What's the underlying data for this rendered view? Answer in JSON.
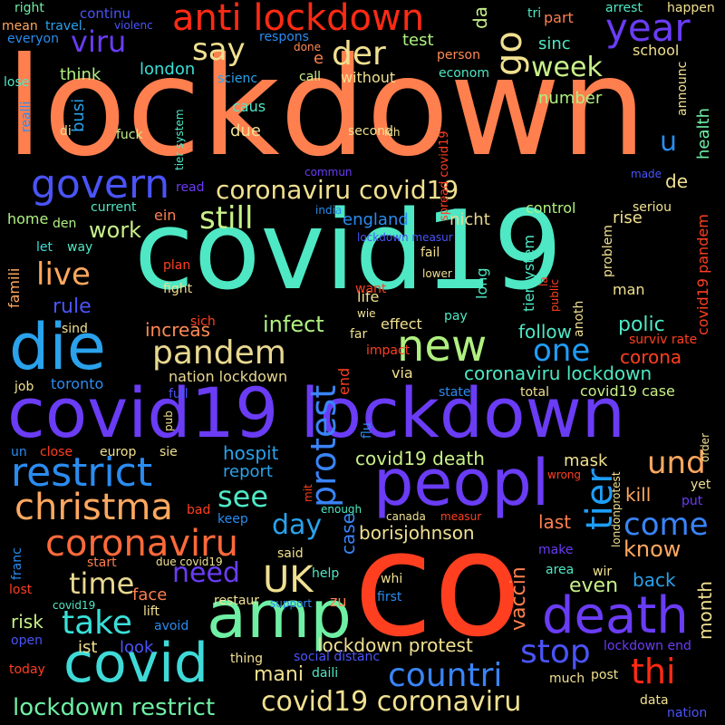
{
  "words": [
    {
      "text": "lockdown",
      "color": "#ff7f4f"
    },
    {
      "text": "covid19",
      "color": "#4ee8c4"
    },
    {
      "text": "co",
      "color": "#ff3f20"
    },
    {
      "text": "covid19 lockdown",
      "color": "#6a3cf5"
    },
    {
      "text": "amp",
      "color": "#6fefa4"
    },
    {
      "text": "die",
      "color": "#2aa2ec"
    },
    {
      "text": "peopl",
      "color": "#6a3cf5"
    },
    {
      "text": "covid",
      "color": "#3fdad8"
    },
    {
      "text": "death",
      "color": "#6a3cf5"
    },
    {
      "text": "restrict",
      "color": "#2a8cf0"
    },
    {
      "text": "anti lockdown",
      "color": "#ff2a14"
    },
    {
      "text": "new",
      "color": "#b0f080"
    },
    {
      "text": "christma",
      "color": "#ffa85f"
    },
    {
      "text": "coronaviru",
      "color": "#ff6a3a"
    },
    {
      "text": "pandem",
      "color": "#e8d890"
    },
    {
      "text": "govern",
      "color": "#4a54f8"
    },
    {
      "text": "protest",
      "color": "#3a84f8"
    },
    {
      "text": "tier",
      "color": "#1e9ef8"
    },
    {
      "text": "UK",
      "color": "#f0e090"
    },
    {
      "text": "year",
      "color": "#6a3cf5"
    },
    {
      "text": "take",
      "color": "#3ae0d8"
    },
    {
      "text": "thi",
      "color": "#ff2a14"
    },
    {
      "text": "stop",
      "color": "#4a54f8"
    },
    {
      "text": "countri",
      "color": "#3a84f8"
    },
    {
      "text": "covid19 coronaviru",
      "color": "#f0e090"
    },
    {
      "text": "lockdown restrict",
      "color": "#6fefa4"
    },
    {
      "text": "coronaviru covid19",
      "color": "#f0e090"
    },
    {
      "text": "und",
      "color": "#ffa85f"
    },
    {
      "text": "come",
      "color": "#3a84f8"
    },
    {
      "text": "one",
      "color": "#1e9ef8"
    },
    {
      "text": "day",
      "color": "#2aa2ec"
    },
    {
      "text": "time",
      "color": "#e8d890"
    },
    {
      "text": "need",
      "color": "#6a3cf5"
    },
    {
      "text": "viru",
      "color": "#6a3cf5"
    },
    {
      "text": "say",
      "color": "#f0e090"
    },
    {
      "text": "der",
      "color": "#f0e090"
    },
    {
      "text": "go",
      "color": "#f0e090"
    },
    {
      "text": "still",
      "color": "#c8f088"
    },
    {
      "text": "live",
      "color": "#ffa85f"
    },
    {
      "text": "see",
      "color": "#4ee8c4"
    },
    {
      "text": "week",
      "color": "#c8f088"
    },
    {
      "text": "u",
      "color": "#2a8cf0"
    },
    {
      "text": "mani",
      "color": "#f0e090"
    },
    {
      "text": "vaccin",
      "color": "#ff7f4f"
    },
    {
      "text": "month",
      "color": "#f0e090"
    },
    {
      "text": "work",
      "color": "#c8f088"
    },
    {
      "text": "infect",
      "color": "#b0f080"
    },
    {
      "text": "increas",
      "color": "#ff8a54"
    },
    {
      "text": "corona",
      "color": "#ff3f20"
    },
    {
      "text": "polic",
      "color": "#4ee8c4"
    },
    {
      "text": "know",
      "color": "#ffa85f"
    },
    {
      "text": "case",
      "color": "#3a84f8"
    },
    {
      "text": "borisjohnson",
      "color": "#f0e090"
    },
    {
      "text": "covid19 death",
      "color": "#c8f088"
    },
    {
      "text": "coronaviru lockdown",
      "color": "#4ee8c4"
    },
    {
      "text": "lockdown protest",
      "color": "#f0e090"
    },
    {
      "text": "hospit",
      "color": "#2aa2ec"
    },
    {
      "text": "report",
      "color": "#2aa2ec"
    },
    {
      "text": "rule",
      "color": "#4a54f8"
    },
    {
      "text": "even",
      "color": "#c8f088"
    },
    {
      "text": "kill",
      "color": "#ffa85f"
    },
    {
      "text": "mask",
      "color": "#f0e090"
    },
    {
      "text": "follow",
      "color": "#4ee8c4"
    },
    {
      "text": "last",
      "color": "#ff7f4f"
    },
    {
      "text": "back",
      "color": "#2aa2ec"
    },
    {
      "text": "face",
      "color": "#ff7f4f"
    },
    {
      "text": "risk",
      "color": "#c8f088"
    },
    {
      "text": "look",
      "color": "#4a54f8"
    },
    {
      "text": "ist",
      "color": "#f0e090"
    },
    {
      "text": "de",
      "color": "#f0e090"
    },
    {
      "text": "rise",
      "color": "#f0e090"
    },
    {
      "text": "england",
      "color": "#2a8cf0"
    },
    {
      "text": "nicht",
      "color": "#e8d890"
    },
    {
      "text": "test",
      "color": "#b0f080"
    },
    {
      "text": "da",
      "color": "#c8f088"
    },
    {
      "text": "sinc",
      "color": "#4ee8c4"
    },
    {
      "text": "number",
      "color": "#b0f080"
    },
    {
      "text": "school",
      "color": "#f0e090"
    },
    {
      "text": "health",
      "color": "#6fefa4"
    },
    {
      "text": "think",
      "color": "#b0f080"
    },
    {
      "text": "london",
      "color": "#3ae0d8"
    },
    {
      "text": "busi",
      "color": "#2aa2ec"
    },
    {
      "text": "due",
      "color": "#f0e090"
    },
    {
      "text": "caus",
      "color": "#4ee8c4"
    },
    {
      "text": "home",
      "color": "#b0f080"
    },
    {
      "text": "ein",
      "color": "#ff7f4f"
    },
    {
      "text": "tiersystem",
      "color": "#4ee8c4"
    },
    {
      "text": "control",
      "color": "#b0f080"
    },
    {
      "text": "life",
      "color": "#f0e090"
    },
    {
      "text": "long",
      "color": "#4ee8c4"
    },
    {
      "text": "effect",
      "color": "#f0e090"
    },
    {
      "text": "via",
      "color": "#f0e090"
    },
    {
      "text": "end",
      "color": "#ff3f20"
    },
    {
      "text": "covid19 case",
      "color": "#c8f088"
    },
    {
      "text": "toronto",
      "color": "#2a8cf0"
    },
    {
      "text": "nation lockdown",
      "color": "#e8d890"
    },
    {
      "text": "famili",
      "color": "#ffa85f"
    },
    {
      "text": "right",
      "color": "#6fefa4"
    },
    {
      "text": "continu",
      "color": "#4a54f8"
    },
    {
      "text": "tri",
      "color": "#4ee8c4"
    },
    {
      "text": "part",
      "color": "#ff7f4f"
    },
    {
      "text": "arrest",
      "color": "#4ee8c4"
    },
    {
      "text": "happen",
      "color": "#f0e090"
    },
    {
      "text": "mean",
      "color": "#ffa85f"
    },
    {
      "text": "travel.",
      "color": "#2aa2ec"
    },
    {
      "text": "violenc",
      "color": "#4a54f8"
    },
    {
      "text": "respons",
      "color": "#2a8cf0"
    },
    {
      "text": "everyon",
      "color": "#2a8cf0"
    },
    {
      "text": "done",
      "color": "#ff8a54"
    },
    {
      "text": "person",
      "color": "#ff8a54"
    },
    {
      "text": "econom",
      "color": "#4ee8c4"
    },
    {
      "text": "announc",
      "color": "#f0e090"
    },
    {
      "text": "lose",
      "color": "#4ee8c4"
    },
    {
      "text": "scienc",
      "color": "#2aa2ec"
    },
    {
      "text": "call",
      "color": "#c8f088"
    },
    {
      "text": "without",
      "color": "#f0e090"
    },
    {
      "text": "e",
      "color": "#ff7f4f"
    },
    {
      "text": "realli",
      "color": "#2a8cf0"
    },
    {
      "text": "tier system",
      "color": "#4ee8c4"
    },
    {
      "text": "di",
      "color": "#f0e090"
    },
    {
      "text": "fuck",
      "color": "#c8f088"
    },
    {
      "text": "second",
      "color": "#f0e090"
    },
    {
      "text": "ich",
      "color": "#f0e090"
    },
    {
      "text": "spread covid19",
      "color": "#ff3f20"
    },
    {
      "text": "commun",
      "color": "#6a3cf5"
    },
    {
      "text": "made",
      "color": "#4a54f8"
    },
    {
      "text": "read",
      "color": "#6a3cf5"
    },
    {
      "text": "current",
      "color": "#4ee8c4"
    },
    {
      "text": "india",
      "color": "#2a8cf0"
    },
    {
      "text": "seriou",
      "color": "#f0e090"
    },
    {
      "text": "den",
      "color": "#b0f080"
    },
    {
      "text": "lockdown measur",
      "color": "#4a54f8"
    },
    {
      "text": "let",
      "color": "#3ae0d8"
    },
    {
      "text": "way",
      "color": "#4ee8c4"
    },
    {
      "text": "fail",
      "color": "#f0e090"
    },
    {
      "text": "lower",
      "color": "#f0e090"
    },
    {
      "text": "plan",
      "color": "#ff3f20"
    },
    {
      "text": "fight",
      "color": "#f0e090"
    },
    {
      "text": "want",
      "color": "#ff3f20"
    },
    {
      "text": "la",
      "color": "#ff3f20"
    },
    {
      "text": "public",
      "color": "#ff3f20"
    },
    {
      "text": "problem",
      "color": "#f0e090"
    },
    {
      "text": "man",
      "color": "#f0e090"
    },
    {
      "text": "covid19 pandem",
      "color": "#ff3f20"
    },
    {
      "text": "wie",
      "color": "#f0e090"
    },
    {
      "text": "pay",
      "color": "#4ee8c4"
    },
    {
      "text": "sind",
      "color": "#f0e090"
    },
    {
      "text": "sich",
      "color": "#ff3f20"
    },
    {
      "text": "far",
      "color": "#f0e090"
    },
    {
      "text": "impact",
      "color": "#ff3f20"
    },
    {
      "text": "anoth",
      "color": "#f0e090"
    },
    {
      "text": "surviv rate",
      "color": "#ff3f20"
    },
    {
      "text": "job",
      "color": "#f0e090"
    },
    {
      "text": "full",
      "color": "#4a54f8"
    },
    {
      "text": "state",
      "color": "#2a8cf0"
    },
    {
      "text": "total",
      "color": "#f0e090"
    },
    {
      "text": "flu",
      "color": "#2a8cf0"
    },
    {
      "text": "pub",
      "color": "#f0e090"
    },
    {
      "text": "order",
      "color": "#f0e090"
    },
    {
      "text": "un",
      "color": "#2a8cf0"
    },
    {
      "text": "close",
      "color": "#ff3f20"
    },
    {
      "text": "europ",
      "color": "#f0e090"
    },
    {
      "text": "sie",
      "color": "#f0e090"
    },
    {
      "text": "wrong",
      "color": "#ff3f20"
    },
    {
      "text": "mit",
      "color": "#ff3f20"
    },
    {
      "text": "enough",
      "color": "#4ee8c4"
    },
    {
      "text": "yet",
      "color": "#f0e090"
    },
    {
      "text": "bad",
      "color": "#ff3f20"
    },
    {
      "text": "keep",
      "color": "#2a8cf0"
    },
    {
      "text": "put",
      "color": "#6a3cf5"
    },
    {
      "text": "canada",
      "color": "#f0e090"
    },
    {
      "text": "measur",
      "color": "#ff3f20"
    },
    {
      "text": "londonprotest",
      "color": "#f0e090"
    },
    {
      "text": "franc",
      "color": "#2a8cf0"
    },
    {
      "text": "start",
      "color": "#ff7f4f"
    },
    {
      "text": "said",
      "color": "#f0e090"
    },
    {
      "text": "make",
      "color": "#6a3cf5"
    },
    {
      "text": "due covid19",
      "color": "#f0e090"
    },
    {
      "text": "area",
      "color": "#4ee8c4"
    },
    {
      "text": "wir",
      "color": "#f0e090"
    },
    {
      "text": "lost",
      "color": "#ff3f20"
    },
    {
      "text": "help",
      "color": "#4ee8c4"
    },
    {
      "text": "whi",
      "color": "#f0e090"
    },
    {
      "text": "covid19",
      "color": "#4ee8c4"
    },
    {
      "text": "support",
      "color": "#2a8cf0"
    },
    {
      "text": "restaur",
      "color": "#f0e090"
    },
    {
      "text": "zu",
      "color": "#ff7f4f"
    },
    {
      "text": "first",
      "color": "#2a8cf0"
    },
    {
      "text": "lift",
      "color": "#f0e090"
    },
    {
      "text": "avoid",
      "color": "#2a8cf0"
    },
    {
      "text": "open",
      "color": "#4a54f8"
    },
    {
      "text": "social distanc",
      "color": "#4a54f8"
    },
    {
      "text": "thing",
      "color": "#f0e090"
    },
    {
      "text": "much",
      "color": "#f0e090"
    },
    {
      "text": "post",
      "color": "#f0e090"
    },
    {
      "text": "lockdown end",
      "color": "#6a3cf5"
    },
    {
      "text": "today",
      "color": "#ff3f20"
    },
    {
      "text": "daili",
      "color": "#4ee8c4"
    },
    {
      "text": "data",
      "color": "#f0e090"
    },
    {
      "text": "nation",
      "color": "#4a54f8"
    }
  ]
}
